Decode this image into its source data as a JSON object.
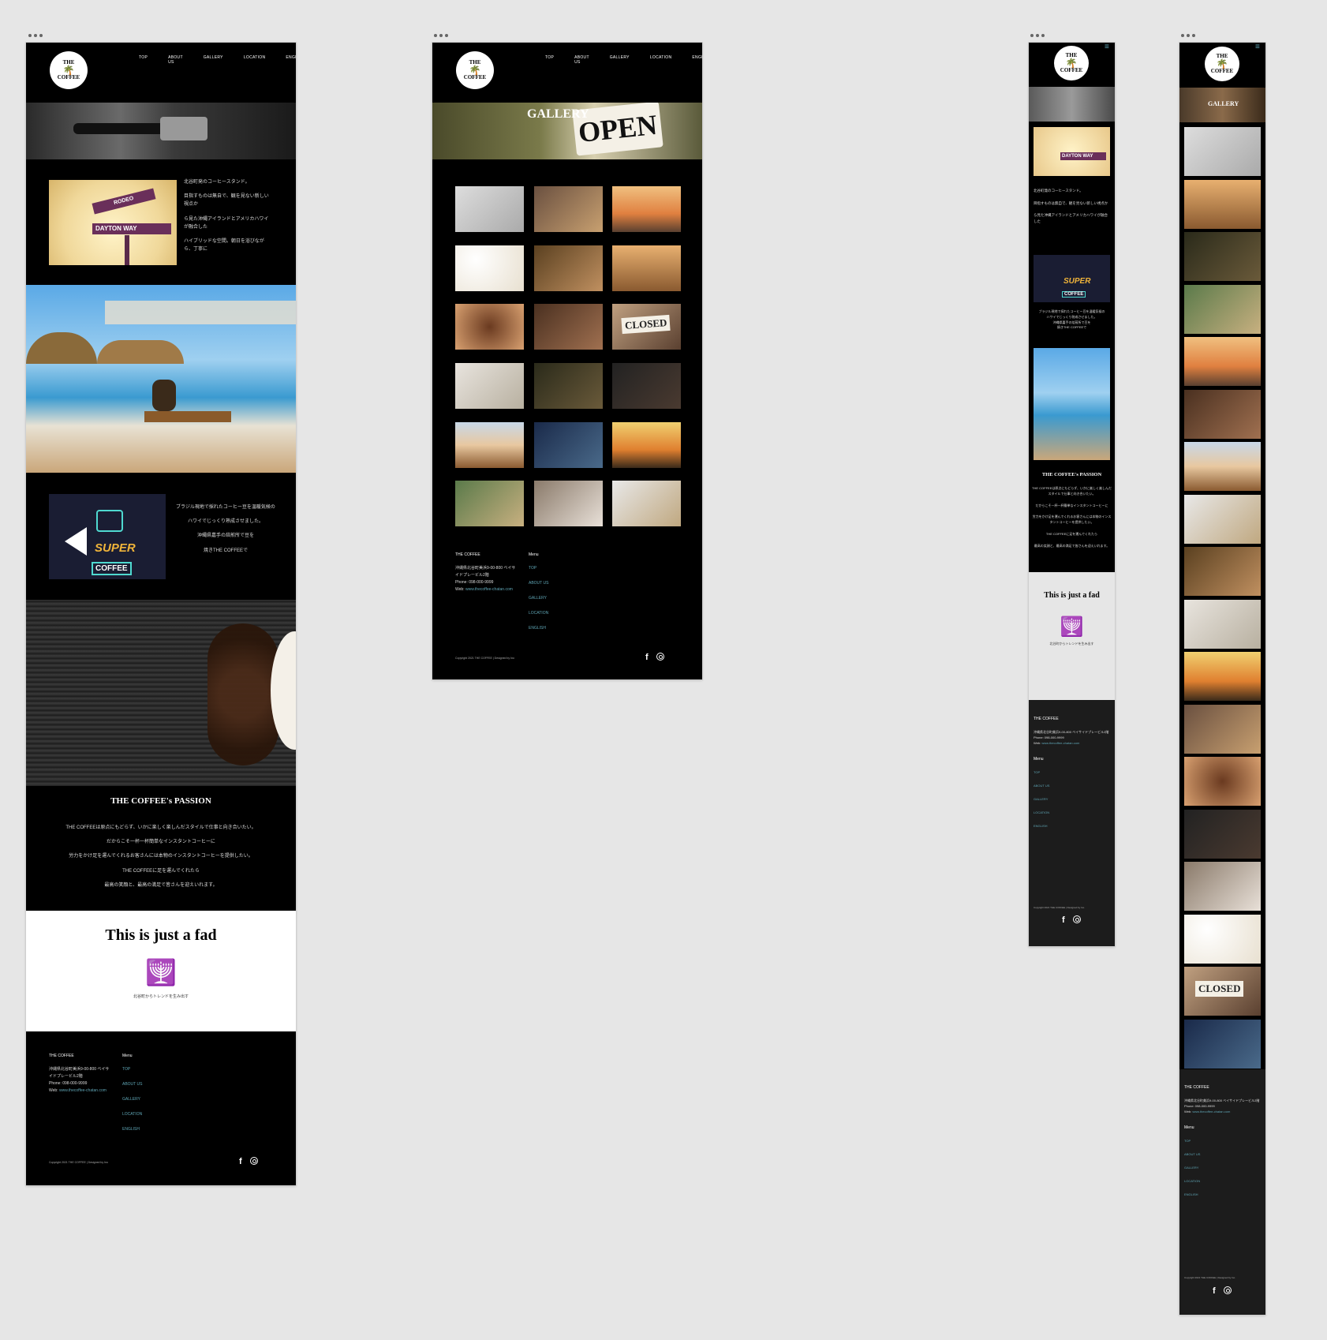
{
  "brand": {
    "logo_line1": "THE",
    "logo_line2": "COFFEE"
  },
  "nav": {
    "top": "TOP",
    "about": "ABOUT US",
    "gallery": "GALLERY",
    "location": "LOCATION",
    "english": "ENGLISH"
  },
  "about": {
    "p1": "北谷町発のコーヒースタンド。",
    "p2": "目指すものは無自で、観を見ない新しい視点か",
    "p3": "ら見た沖縄アイランドとアメリカハワイが融合した",
    "p4": "ハイブリッドな空間。朝日を浴びながら、丁寧に"
  },
  "neon": {
    "line1": "SUPER",
    "line2": "COFFEE"
  },
  "brazil": {
    "p1": "ブラジル現地で採れたコーヒー豆を温暖気候の",
    "p2": "ハワイでじっくり熟成させました。",
    "p3": "沖縄県嘉手の焙煎所で豆を",
    "p4": "焼きTHE COFFEEで"
  },
  "passion": {
    "title": "THE COFFEE's PASSION",
    "p1": "THE COFFEEは原点にもどらず、いかに楽しく楽しんだスタイルで仕事と向き合いたい。",
    "p2": "だからこそ一杯一杯簡単なインスタントコーヒーに",
    "p3": "労力をかけ足を運んでくれるお客さんには本物のインスタントコーヒーを提供したい。",
    "p4": "THE COFFEEに足を運んでくれたら",
    "p5": "最高の笑顔と、最高の満足で皆さんを迎えいれます。"
  },
  "fad": {
    "title": "This is just a fad",
    "subtitle": "北谷町からトレンドを生み出す"
  },
  "footer": {
    "name": "THE COFFEE",
    "address": "沖縄県北谷町美浜9-00-800 ベイサイドプレービル2階",
    "phone": "Phone: 098-000-9999",
    "web_label": "Web: ",
    "web": "www.thecoffee-chatan.com",
    "menu_title": "Menu",
    "menu": [
      "TOP",
      "ABOUT US",
      "GALLERY",
      "LOCATION",
      "ENGLISH"
    ],
    "copyright": "Copyright 2021 THE COFFEE | Designed by Ino"
  },
  "gallery_page": {
    "hero_title": "GALLERY",
    "open_sign": "OPEN",
    "closed_sign": "CLOSED"
  },
  "road_sign": {
    "line1": "DAYTON",
    "line2": "WAY",
    "line3": "RODEO"
  },
  "colors": {
    "accent": "#5fa5b5",
    "bg": "#000000",
    "canvas": "#e6e6e6"
  }
}
